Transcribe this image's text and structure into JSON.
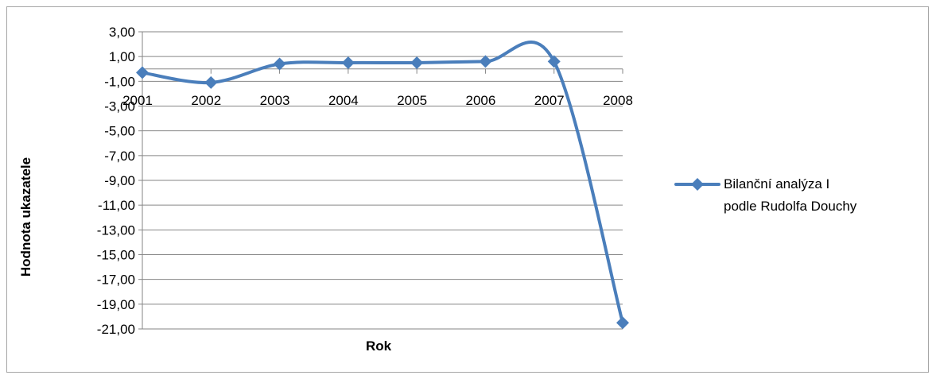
{
  "chart_data": {
    "type": "line",
    "categories": [
      "2001",
      "2002",
      "2003",
      "2004",
      "2005",
      "2006",
      "2007",
      "2008"
    ],
    "series": [
      {
        "name": "Bilanční analýza I podle Rudolfa Douchy",
        "values": [
          -0.3,
          -1.1,
          0.4,
          0.5,
          0.5,
          0.6,
          0.6,
          -20.5
        ]
      }
    ],
    "xlabel": "Rok",
    "ylabel": "Hodnota ukazatele",
    "yticks": [
      "3,00",
      "1,00",
      "-1,00",
      "-3,00",
      "-5,00",
      "-7,00",
      "-9,00",
      "-11,00",
      "-13,00",
      "-15,00",
      "-17,00",
      "-19,00",
      "-21,00"
    ],
    "ylim": [
      -21,
      3
    ],
    "grid": true,
    "legend_position": "right",
    "line_color": "#4a7ebb",
    "smooth": true
  }
}
